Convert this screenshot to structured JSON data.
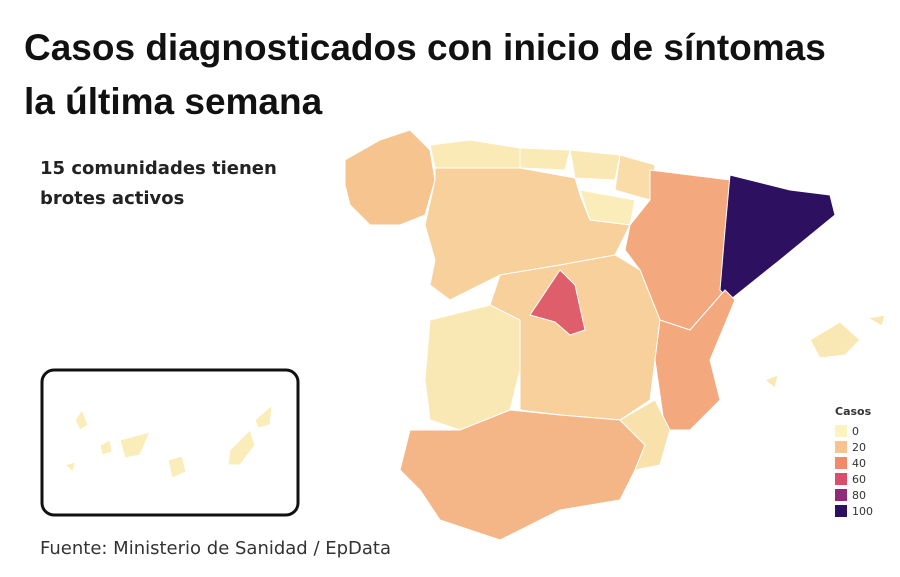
{
  "title": "Casos diagnosticados con inicio de síntomas la última semana",
  "subtitle": "15 comunidades tienen brotes activos",
  "source": "Fuente: Ministerio de Sanidad / EpData",
  "legend": {
    "title": "Casos",
    "stops": [
      0,
      20,
      40,
      60,
      80,
      100
    ],
    "colors": [
      "#fbf4c0",
      "#f6c48f",
      "#ef8b6b",
      "#d84f6b",
      "#8e2c7b",
      "#2d1160"
    ]
  },
  "region_values": [
    20,
    4,
    4,
    5,
    10,
    3,
    15,
    30,
    100,
    15,
    55,
    30,
    5,
    25,
    8,
    5,
    3
  ]
}
